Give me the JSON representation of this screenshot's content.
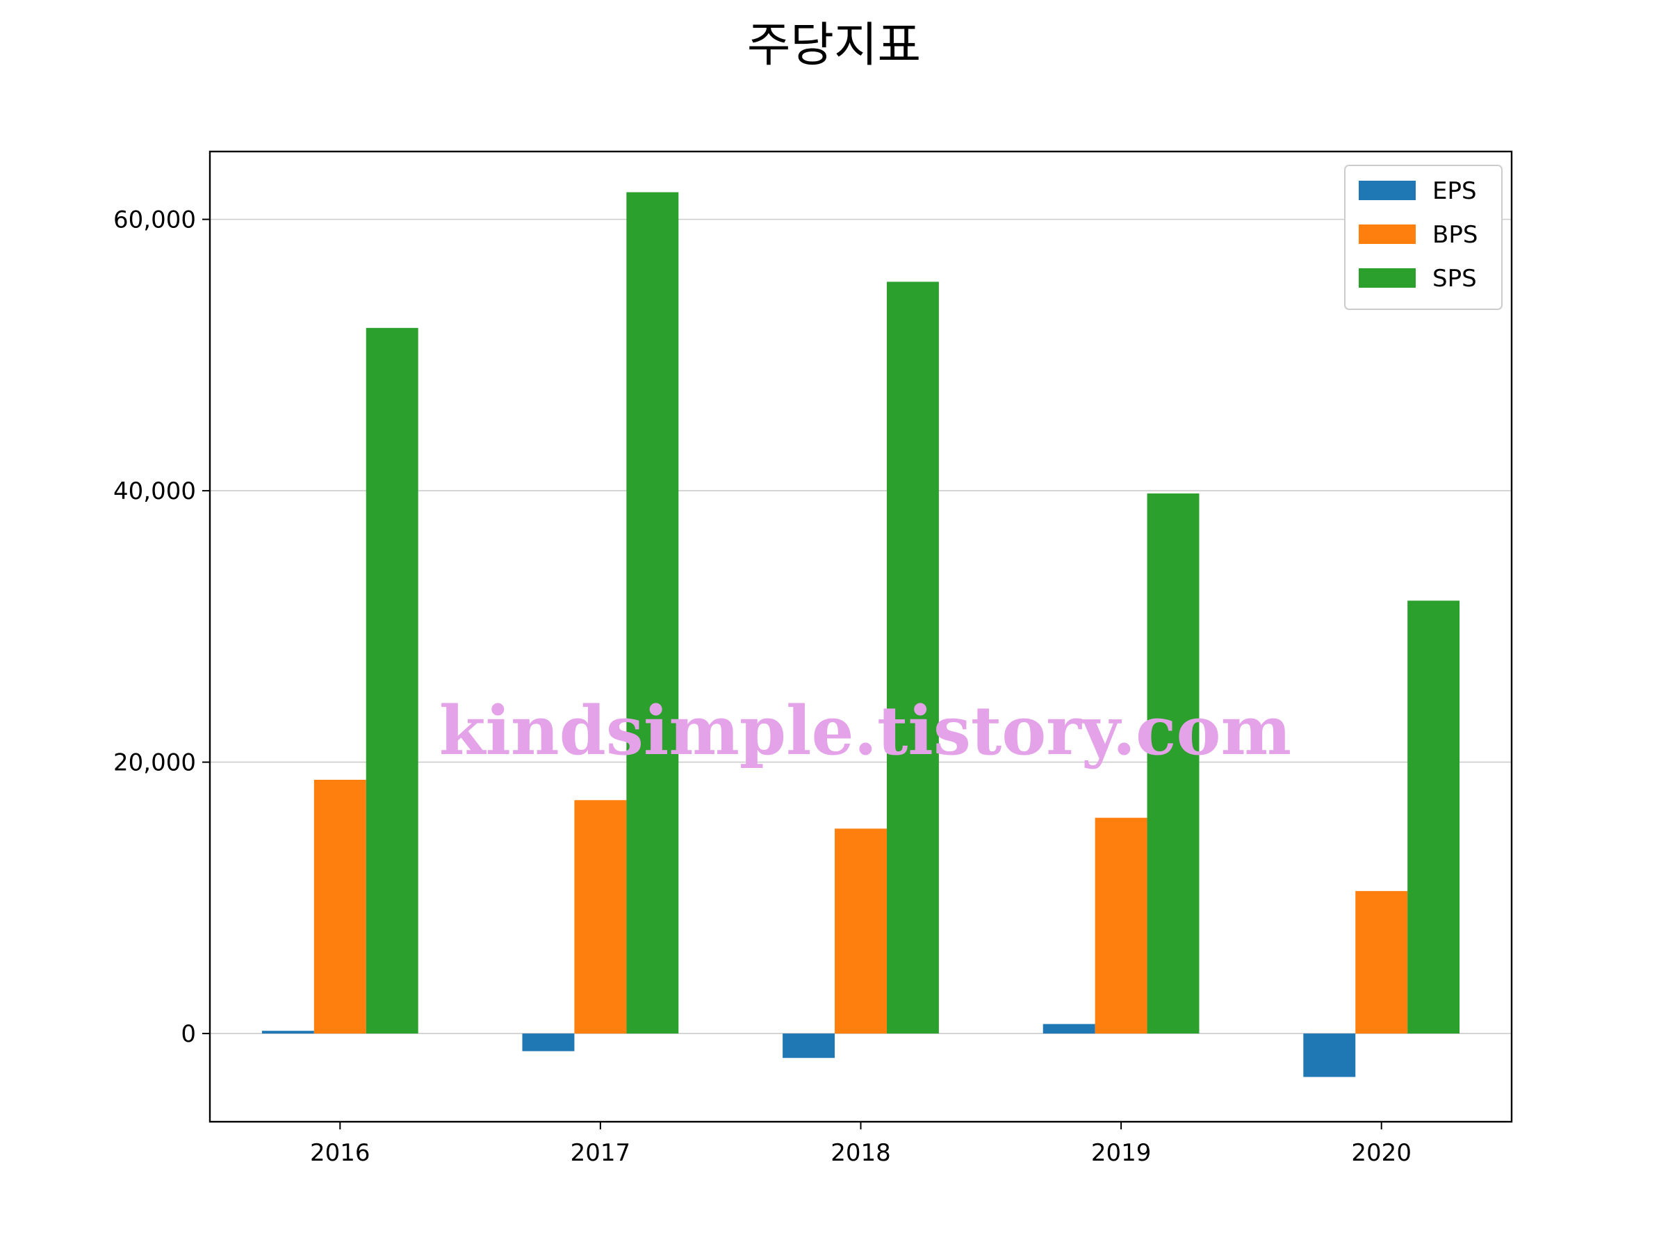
{
  "chart_data": {
    "type": "bar",
    "title": "주당지표",
    "xlabel": "",
    "ylabel": "",
    "categories": [
      "2016",
      "2017",
      "2018",
      "2019",
      "2020"
    ],
    "series": [
      {
        "name": "EPS",
        "color": "#1f77b4",
        "values": [
          200,
          -1300,
          -1800,
          700,
          -3200
        ]
      },
      {
        "name": "BPS",
        "color": "#ff7f0e",
        "values": [
          18700,
          17200,
          15100,
          15900,
          10500
        ]
      },
      {
        "name": "SPS",
        "color": "#2ca02c",
        "values": [
          52000,
          62000,
          55400,
          39800,
          31900
        ]
      }
    ],
    "ylim": [
      -6500,
      65000
    ],
    "yticks": [
      0,
      20000,
      40000,
      60000
    ],
    "ytick_labels": [
      "0",
      "20,000",
      "40,000",
      "60,000"
    ],
    "grid": "horizontal",
    "legend_position": "top-right",
    "watermark": "kindsimple.tistory.com"
  }
}
